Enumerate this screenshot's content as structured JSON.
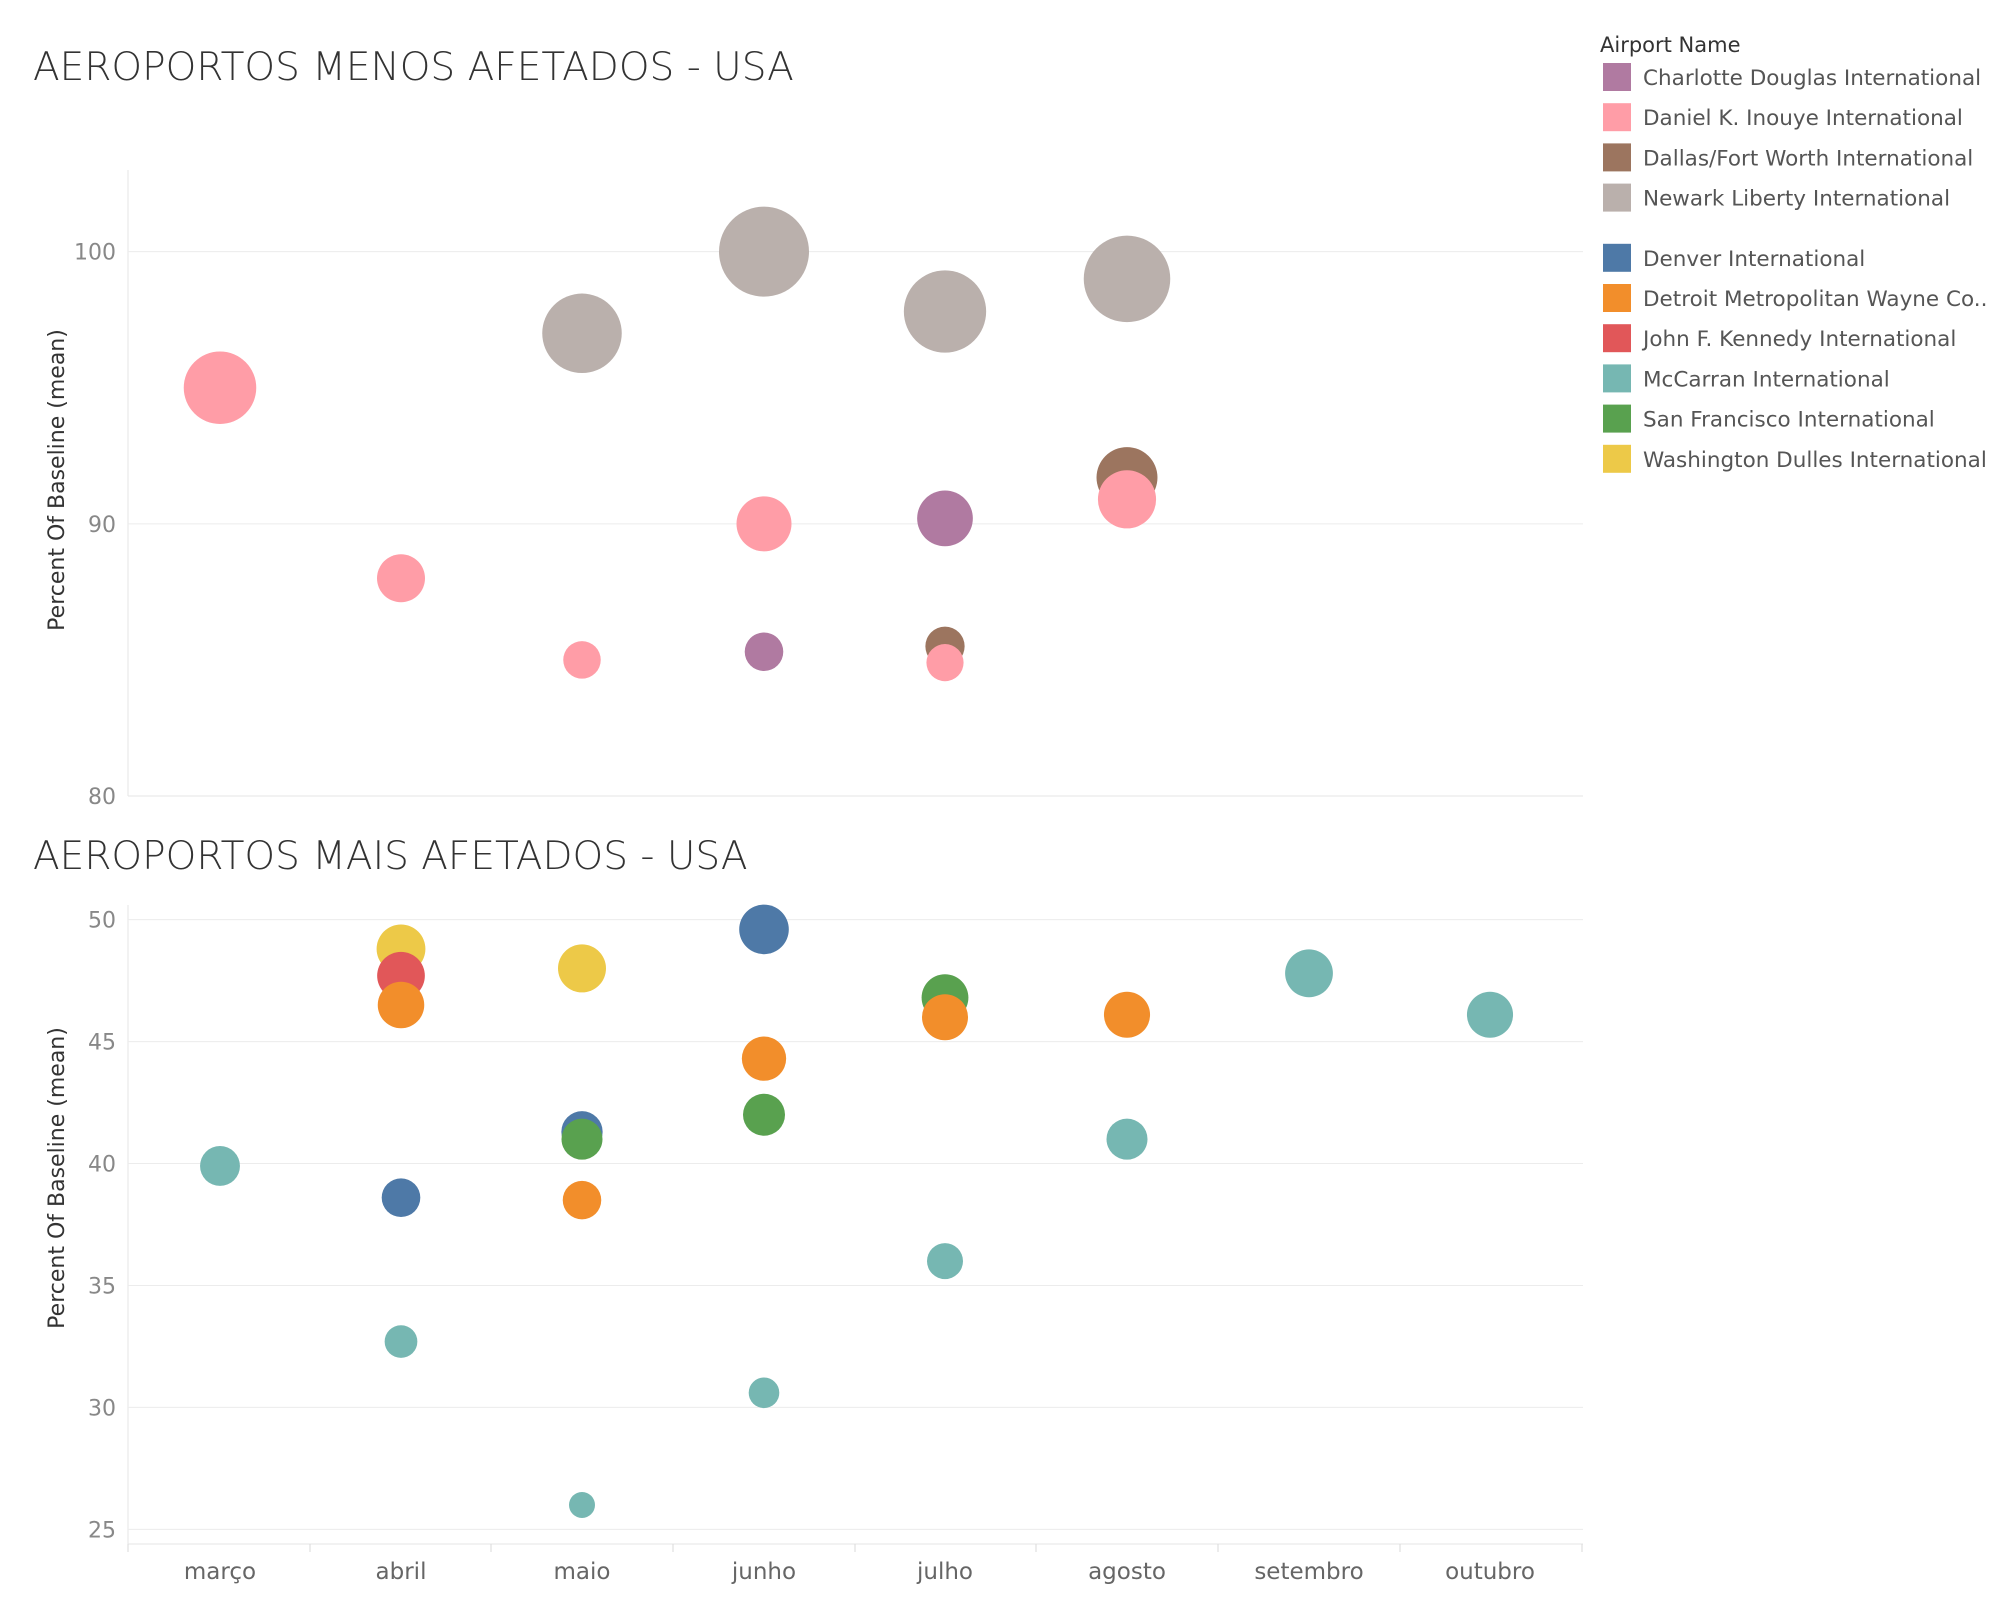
{
  "legend": {
    "title": "Airport Name",
    "groups": [
      [
        {
          "name": "Charlotte Douglas International",
          "color": "#B07AA1"
        },
        {
          "name": "Daniel K. Inouye International",
          "color": "#FF9DA7"
        },
        {
          "name": "Dallas/Fort Worth International",
          "color": "#9C755F"
        },
        {
          "name": "Newark Liberty International",
          "color": "#BAB0AC"
        }
      ],
      [
        {
          "name": "Denver International",
          "color": "#4E79A7"
        },
        {
          "name": "Detroit Metropolitan Wayne Co..",
          "color": "#F28E2B"
        },
        {
          "name": "John F. Kennedy International",
          "color": "#E15759"
        },
        {
          "name": "McCarran International",
          "color": "#76B7B2"
        },
        {
          "name": "San Francisco International",
          "color": "#59A14F"
        },
        {
          "name": "Washington Dulles International",
          "color": "#EDC948"
        }
      ]
    ]
  },
  "chart_data": [
    {
      "type": "scatter",
      "title": "AEROPORTOS MENOS AFETADOS - USA",
      "xlabel": "",
      "ylabel": "Percent Of Baseline (mean)",
      "categories": [
        "março",
        "abril",
        "maio",
        "junho",
        "julho",
        "agosto",
        "setembro",
        "outubro"
      ],
      "ylim": [
        80,
        103
      ],
      "yticks": [
        80,
        90,
        100
      ],
      "grid": true,
      "size_encoding": "value",
      "points": [
        {
          "x": "março",
          "y": 95.0,
          "airport": "Daniel K. Inouye International"
        },
        {
          "x": "abril",
          "y": 88.0,
          "airport": "Daniel K. Inouye International"
        },
        {
          "x": "maio",
          "y": 97.0,
          "airport": "Newark Liberty International"
        },
        {
          "x": "maio",
          "y": 85.0,
          "airport": "Daniel K. Inouye International"
        },
        {
          "x": "junho",
          "y": 100.0,
          "airport": "Newark Liberty International"
        },
        {
          "x": "junho",
          "y": 90.0,
          "airport": "Daniel K. Inouye International"
        },
        {
          "x": "junho",
          "y": 85.3,
          "airport": "Charlotte Douglas International"
        },
        {
          "x": "julho",
          "y": 97.8,
          "airport": "Newark Liberty International"
        },
        {
          "x": "julho",
          "y": 90.2,
          "airport": "Charlotte Douglas International"
        },
        {
          "x": "julho",
          "y": 85.5,
          "airport": "Dallas/Fort Worth International"
        },
        {
          "x": "julho",
          "y": 84.9,
          "airport": "Daniel K. Inouye International"
        },
        {
          "x": "agosto",
          "y": 99.0,
          "airport": "Newark Liberty International"
        },
        {
          "x": "agosto",
          "y": 91.7,
          "airport": "Dallas/Fort Worth International"
        },
        {
          "x": "agosto",
          "y": 90.9,
          "airport": "Daniel K. Inouye International"
        }
      ]
    },
    {
      "type": "scatter",
      "title": "AEROPORTOS MAIS AFETADOS - USA",
      "xlabel": "",
      "ylabel": "Percent Of Baseline (mean)",
      "categories": [
        "março",
        "abril",
        "maio",
        "junho",
        "julho",
        "agosto",
        "setembro",
        "outubro"
      ],
      "ylim": [
        24.4,
        50.6
      ],
      "yticks": [
        25,
        30,
        35,
        40,
        45,
        50
      ],
      "grid": true,
      "size_encoding": "value",
      "points": [
        {
          "x": "março",
          "y": 39.9,
          "airport": "McCarran International"
        },
        {
          "x": "abril",
          "y": 48.8,
          "airport": "Washington Dulles International"
        },
        {
          "x": "abril",
          "y": 47.7,
          "airport": "John F. Kennedy International"
        },
        {
          "x": "abril",
          "y": 46.5,
          "airport": "Detroit Metropolitan Wayne Co.."
        },
        {
          "x": "abril",
          "y": 38.6,
          "airport": "Denver International"
        },
        {
          "x": "abril",
          "y": 32.7,
          "airport": "McCarran International"
        },
        {
          "x": "maio",
          "y": 48.0,
          "airport": "Washington Dulles International"
        },
        {
          "x": "maio",
          "y": 41.0,
          "airport": "San Francisco International"
        },
        {
          "x": "maio",
          "y": 41.3,
          "airport": "Denver International"
        },
        {
          "x": "maio",
          "y": 38.5,
          "airport": "Detroit Metropolitan Wayne Co.."
        },
        {
          "x": "maio",
          "y": 26.0,
          "airport": "McCarran International"
        },
        {
          "x": "junho",
          "y": 49.6,
          "airport": "Denver International"
        },
        {
          "x": "junho",
          "y": 44.3,
          "airport": "Detroit Metropolitan Wayne Co.."
        },
        {
          "x": "junho",
          "y": 42.0,
          "airport": "San Francisco International"
        },
        {
          "x": "junho",
          "y": 30.6,
          "airport": "McCarran International"
        },
        {
          "x": "julho",
          "y": 46.8,
          "airport": "San Francisco International"
        },
        {
          "x": "julho",
          "y": 46.0,
          "airport": "Detroit Metropolitan Wayne Co.."
        },
        {
          "x": "julho",
          "y": 36.0,
          "airport": "McCarran International"
        },
        {
          "x": "agosto",
          "y": 46.1,
          "airport": "Detroit Metropolitan Wayne Co.."
        },
        {
          "x": "agosto",
          "y": 41.0,
          "airport": "McCarran International"
        },
        {
          "x": "setembro",
          "y": 47.8,
          "airport": "McCarran International"
        },
        {
          "x": "outubro",
          "y": 46.1,
          "airport": "McCarran International"
        }
      ]
    }
  ]
}
